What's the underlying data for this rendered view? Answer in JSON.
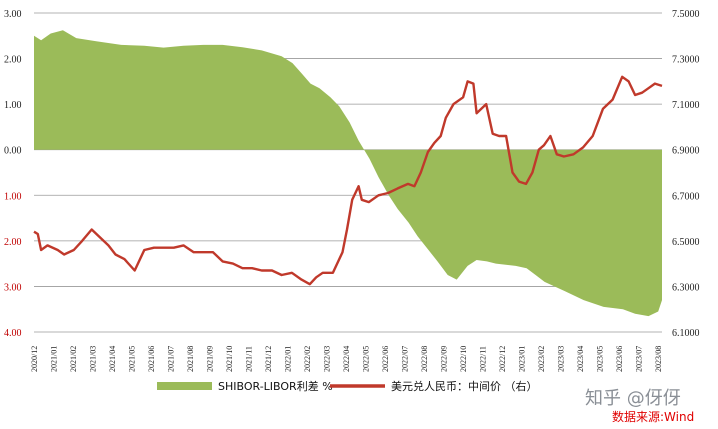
{
  "chart_data": {
    "type": "area+line",
    "left_axis": {
      "ticks": [
        "3.00",
        "2.00",
        "1.00",
        "0.00",
        "1.00",
        "2.00",
        "3.00",
        "4.00"
      ],
      "tick_values": [
        3,
        2,
        1,
        0,
        -1,
        -2,
        -3,
        -4
      ],
      "ylim": [
        -4,
        3
      ]
    },
    "right_axis": {
      "ticks": [
        "7.5000",
        "7.3000",
        "7.1000",
        "6.9000",
        "6.7000",
        "6.5000",
        "6.3000",
        "6.1000"
      ],
      "tick_values": [
        7.5,
        7.3,
        7.1,
        6.9,
        6.7,
        6.5,
        6.3,
        6.1
      ],
      "ylim": [
        6.1,
        7.5
      ]
    },
    "x_ticks": [
      "2020/12",
      "2021/01",
      "2021/02",
      "2021/03",
      "2021/04",
      "2021/05",
      "2021/06",
      "2021/07",
      "2021/08",
      "2021/09",
      "2021/10",
      "2021/11",
      "2021/12",
      "2022/01",
      "2022/02",
      "2022/03",
      "2022/04",
      "2022/05",
      "2022/06",
      "2022/07",
      "2022/08",
      "2022/09",
      "2022/10",
      "2022/11",
      "2022/12",
      "2023/01",
      "2023/02",
      "2023/03",
      "2023/04",
      "2023/05",
      "2023/06",
      "2023/07",
      "2023/08"
    ],
    "x_domain": [
      "2020-12-25",
      "2023-08-31"
    ],
    "grid": true,
    "legend_position": "bottom",
    "series": [
      {
        "name": "SHIBOR-LIBOR利差 %",
        "type": "area",
        "axis": "left",
        "color": "#9bbb59",
        "points": [
          [
            "2020-12-25",
            2.5
          ],
          [
            "2021-01-05",
            2.4
          ],
          [
            "2021-01-20",
            2.55
          ],
          [
            "2021-02-08",
            2.62
          ],
          [
            "2021-03-01",
            2.45
          ],
          [
            "2021-04-01",
            2.38
          ],
          [
            "2021-05-10",
            2.3
          ],
          [
            "2021-06-15",
            2.28
          ],
          [
            "2021-07-15",
            2.24
          ],
          [
            "2021-08-15",
            2.28
          ],
          [
            "2021-09-15",
            2.3
          ],
          [
            "2021-10-15",
            2.3
          ],
          [
            "2021-11-15",
            2.25
          ],
          [
            "2021-12-15",
            2.18
          ],
          [
            "2022-01-15",
            2.05
          ],
          [
            "2022-02-01",
            1.9
          ],
          [
            "2022-02-15",
            1.68
          ],
          [
            "2022-03-01",
            1.45
          ],
          [
            "2022-03-15",
            1.35
          ],
          [
            "2022-04-01",
            1.15
          ],
          [
            "2022-04-15",
            0.95
          ],
          [
            "2022-05-01",
            0.6
          ],
          [
            "2022-05-15",
            0.2
          ],
          [
            "2022-06-01",
            -0.2
          ],
          [
            "2022-06-15",
            -0.6
          ],
          [
            "2022-07-01",
            -1.0
          ],
          [
            "2022-07-15",
            -1.3
          ],
          [
            "2022-08-01",
            -1.6
          ],
          [
            "2022-08-15",
            -1.9
          ],
          [
            "2022-09-01",
            -2.2
          ],
          [
            "2022-09-15",
            -2.45
          ],
          [
            "2022-10-01",
            -2.75
          ],
          [
            "2022-10-15",
            -2.85
          ],
          [
            "2022-11-01",
            -2.55
          ],
          [
            "2022-11-15",
            -2.42
          ],
          [
            "2022-12-01",
            -2.45
          ],
          [
            "2022-12-15",
            -2.5
          ],
          [
            "2023-01-15",
            -2.55
          ],
          [
            "2023-02-01",
            -2.6
          ],
          [
            "2023-02-15",
            -2.75
          ],
          [
            "2023-03-01",
            -2.9
          ],
          [
            "2023-04-01",
            -3.1
          ],
          [
            "2023-05-01",
            -3.3
          ],
          [
            "2023-06-01",
            -3.45
          ],
          [
            "2023-07-01",
            -3.5
          ],
          [
            "2023-07-20",
            -3.6
          ],
          [
            "2023-08-10",
            -3.65
          ],
          [
            "2023-08-25",
            -3.55
          ],
          [
            "2023-08-31",
            -3.3
          ]
        ]
      },
      {
        "name": "美元兑人民币：中间价 （右）",
        "type": "line",
        "axis": "right",
        "color": "#c0392b",
        "points": [
          [
            "2020-12-25",
            6.54
          ],
          [
            "2020-12-31",
            6.53
          ],
          [
            "2021-01-05",
            6.46
          ],
          [
            "2021-01-15",
            6.48
          ],
          [
            "2021-01-31",
            6.46
          ],
          [
            "2021-02-10",
            6.44
          ],
          [
            "2021-02-25",
            6.46
          ],
          [
            "2021-03-10",
            6.5
          ],
          [
            "2021-03-25",
            6.55
          ],
          [
            "2021-04-05",
            6.52
          ],
          [
            "2021-04-20",
            6.48
          ],
          [
            "2021-05-01",
            6.44
          ],
          [
            "2021-05-15",
            6.42
          ],
          [
            "2021-05-31",
            6.37
          ],
          [
            "2021-06-15",
            6.46
          ],
          [
            "2021-06-30",
            6.47
          ],
          [
            "2021-07-15",
            6.47
          ],
          [
            "2021-07-31",
            6.47
          ],
          [
            "2021-08-15",
            6.48
          ],
          [
            "2021-08-31",
            6.45
          ],
          [
            "2021-09-15",
            6.45
          ],
          [
            "2021-09-30",
            6.45
          ],
          [
            "2021-10-15",
            6.41
          ],
          [
            "2021-10-31",
            6.4
          ],
          [
            "2021-11-15",
            6.38
          ],
          [
            "2021-11-30",
            6.38
          ],
          [
            "2021-12-15",
            6.37
          ],
          [
            "2021-12-31",
            6.37
          ],
          [
            "2022-01-15",
            6.35
          ],
          [
            "2022-01-31",
            6.36
          ],
          [
            "2022-02-15",
            6.33
          ],
          [
            "2022-02-28",
            6.31
          ],
          [
            "2022-03-10",
            6.34
          ],
          [
            "2022-03-20",
            6.36
          ],
          [
            "2022-04-05",
            6.36
          ],
          [
            "2022-04-20",
            6.45
          ],
          [
            "2022-04-27",
            6.55
          ],
          [
            "2022-05-05",
            6.68
          ],
          [
            "2022-05-15",
            6.74
          ],
          [
            "2022-05-20",
            6.68
          ],
          [
            "2022-05-31",
            6.67
          ],
          [
            "2022-06-15",
            6.7
          ],
          [
            "2022-06-30",
            6.71
          ],
          [
            "2022-07-15",
            6.73
          ],
          [
            "2022-07-31",
            6.75
          ],
          [
            "2022-08-10",
            6.74
          ],
          [
            "2022-08-20",
            6.8
          ],
          [
            "2022-08-31",
            6.89
          ],
          [
            "2022-09-10",
            6.93
          ],
          [
            "2022-09-20",
            6.96
          ],
          [
            "2022-09-28",
            7.04
          ],
          [
            "2022-10-10",
            7.1
          ],
          [
            "2022-10-25",
            7.13
          ],
          [
            "2022-11-01",
            7.2
          ],
          [
            "2022-11-10",
            7.19
          ],
          [
            "2022-11-15",
            7.06
          ],
          [
            "2022-11-30",
            7.1
          ],
          [
            "2022-12-10",
            6.97
          ],
          [
            "2022-12-20",
            6.96
          ],
          [
            "2022-12-31",
            6.96
          ],
          [
            "2023-01-10",
            6.8
          ],
          [
            "2023-01-20",
            6.76
          ],
          [
            "2023-01-31",
            6.75
          ],
          [
            "2023-02-10",
            6.8
          ],
          [
            "2023-02-20",
            6.9
          ],
          [
            "2023-02-28",
            6.92
          ],
          [
            "2023-03-10",
            6.96
          ],
          [
            "2023-03-20",
            6.88
          ],
          [
            "2023-03-31",
            6.87
          ],
          [
            "2023-04-15",
            6.88
          ],
          [
            "2023-04-30",
            6.91
          ],
          [
            "2023-05-15",
            6.96
          ],
          [
            "2023-05-31",
            7.08
          ],
          [
            "2023-06-15",
            7.12
          ],
          [
            "2023-06-30",
            7.22
          ],
          [
            "2023-07-10",
            7.2
          ],
          [
            "2023-07-20",
            7.14
          ],
          [
            "2023-07-31",
            7.15
          ],
          [
            "2023-08-10",
            7.17
          ],
          [
            "2023-08-20",
            7.19
          ],
          [
            "2023-08-31",
            7.18
          ]
        ]
      }
    ]
  },
  "watermark": "知乎 @伢伢",
  "source_label": "数据来源:Wind",
  "colors": {
    "area_fill": "#9bbb59",
    "line": "#c0392b",
    "grid": "#9a9a9a",
    "negative_tick": "#c00000",
    "source_text": "#e00000"
  }
}
